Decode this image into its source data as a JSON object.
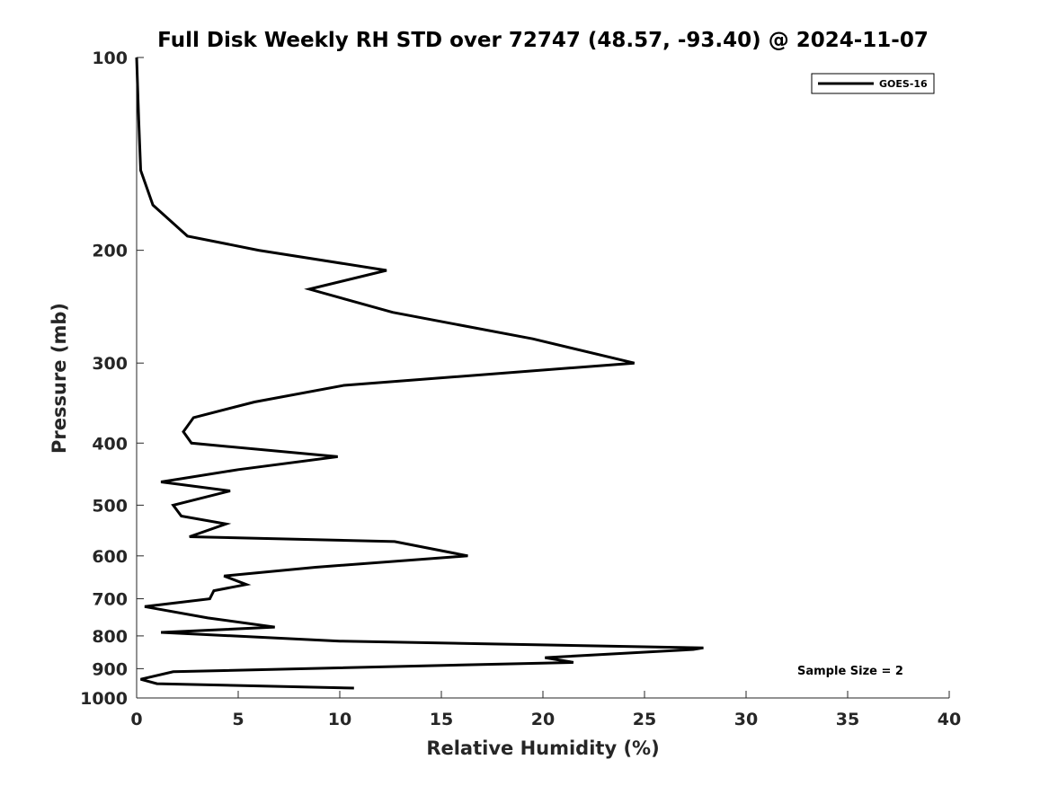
{
  "chart_data": {
    "type": "line",
    "title": "Full Disk Weekly RH STD over 72747 (48.57, -93.40) @ 2024-11-07",
    "xlabel": "Relative Humidity (%)",
    "ylabel": "Pressure (mb)",
    "xlim": [
      0,
      40
    ],
    "ylim": [
      100,
      1000
    ],
    "yscale": "log",
    "yreversed": true,
    "grid": false,
    "legend_position": "top-right",
    "xticks": [
      0,
      5,
      10,
      15,
      20,
      25,
      30,
      35,
      40
    ],
    "yticks": [
      100,
      200,
      300,
      400,
      500,
      600,
      700,
      800,
      900,
      1000
    ],
    "annotation": "Sample Size = 2",
    "series": [
      {
        "name": "GOES-16",
        "color": "#000000",
        "points": [
          [
            0.0,
            100
          ],
          [
            0.1,
            125
          ],
          [
            0.2,
            150
          ],
          [
            0.8,
            170
          ],
          [
            2.5,
            190
          ],
          [
            6.0,
            200
          ],
          [
            12.3,
            215
          ],
          [
            8.5,
            230
          ],
          [
            12.6,
            250
          ],
          [
            19.5,
            275
          ],
          [
            24.5,
            300
          ],
          [
            10.2,
            325
          ],
          [
            5.8,
            345
          ],
          [
            2.8,
            365
          ],
          [
            2.3,
            384
          ],
          [
            2.7,
            400
          ],
          [
            9.9,
            420
          ],
          [
            5.0,
            440
          ],
          [
            1.2,
            460
          ],
          [
            4.6,
            475
          ],
          [
            1.8,
            500
          ],
          [
            2.2,
            520
          ],
          [
            4.4,
            535
          ],
          [
            2.6,
            560
          ],
          [
            12.7,
            570
          ],
          [
            16.3,
            600
          ],
          [
            8.8,
            625
          ],
          [
            4.3,
            645
          ],
          [
            5.4,
            665
          ],
          [
            3.8,
            680
          ],
          [
            3.6,
            700
          ],
          [
            0.4,
            720
          ],
          [
            3.5,
            750
          ],
          [
            6.8,
            775
          ],
          [
            1.2,
            790
          ],
          [
            10.0,
            815
          ],
          [
            27.9,
            835
          ],
          [
            27.4,
            840
          ],
          [
            20.1,
            865
          ],
          [
            21.5,
            880
          ],
          [
            1.8,
            910
          ],
          [
            0.2,
            935
          ],
          [
            1.0,
            950
          ],
          [
            10.7,
            965
          ]
        ]
      }
    ]
  }
}
